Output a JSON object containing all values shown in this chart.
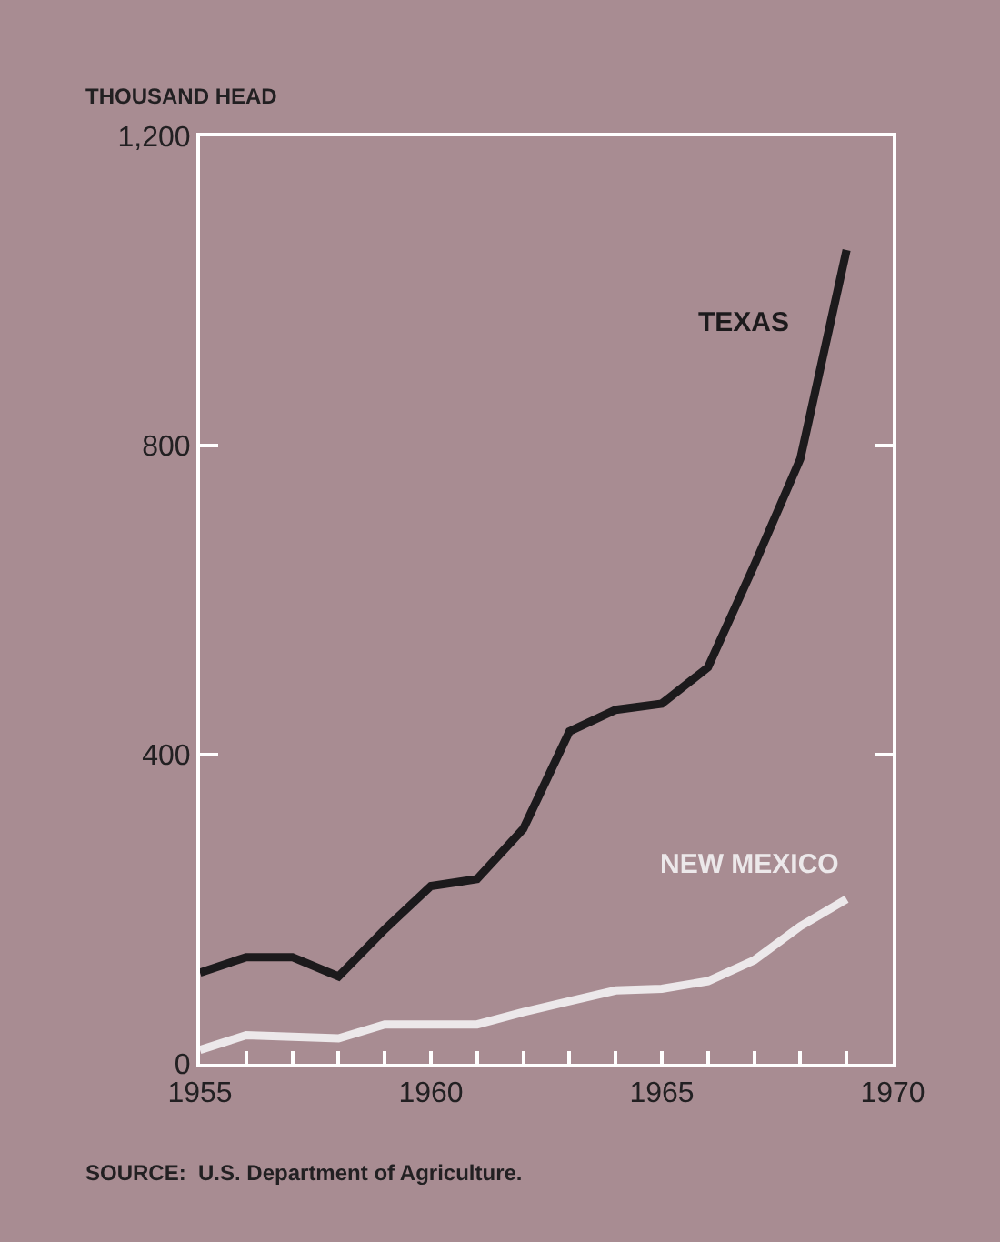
{
  "chart_data": {
    "type": "line",
    "ylabel": "THOUSAND HEAD",
    "x": [
      1955,
      1956,
      1957,
      1958,
      1959,
      1960,
      1961,
      1962,
      1963,
      1964,
      1965,
      1966,
      1967,
      1968,
      1969
    ],
    "series": [
      {
        "name": "TEXAS",
        "color": "#1c1a1c",
        "values": [
          118,
          138,
          138,
          113,
          174,
          230,
          239,
          304,
          430,
          458,
          466,
          513,
          645,
          783,
          1053
        ]
      },
      {
        "name": "NEW MEXICO",
        "color": "#ece8ea",
        "values": [
          18,
          37,
          35,
          33,
          51,
          51,
          51,
          67,
          81,
          95,
          97,
          107,
          134,
          178,
          213
        ]
      }
    ],
    "xlim": [
      1955,
      1970
    ],
    "xticks": [
      1955,
      {
        "value": 1956,
        "label": null
      },
      {
        "value": 1957,
        "label": null
      },
      {
        "value": 1958,
        "label": null
      },
      {
        "value": 1959,
        "label": null
      },
      1960,
      {
        "value": 1961,
        "label": null
      },
      {
        "value": 1962,
        "label": null
      },
      {
        "value": 1963,
        "label": null
      },
      {
        "value": 1964,
        "label": null
      },
      1965,
      {
        "value": 1966,
        "label": null
      },
      {
        "value": 1967,
        "label": null
      },
      {
        "value": 1968,
        "label": null
      },
      {
        "value": 1969,
        "label": null
      },
      1970
    ],
    "ylim": [
      0,
      1200
    ],
    "yticks": [
      0,
      400,
      800,
      {
        "value": 1200,
        "label": "1,200"
      }
    ],
    "grid": false,
    "legend": false,
    "marker": "none",
    "line_style": "solid",
    "annotations": [
      "SOURCE:  U.S. Department of Agriculture."
    ]
  }
}
